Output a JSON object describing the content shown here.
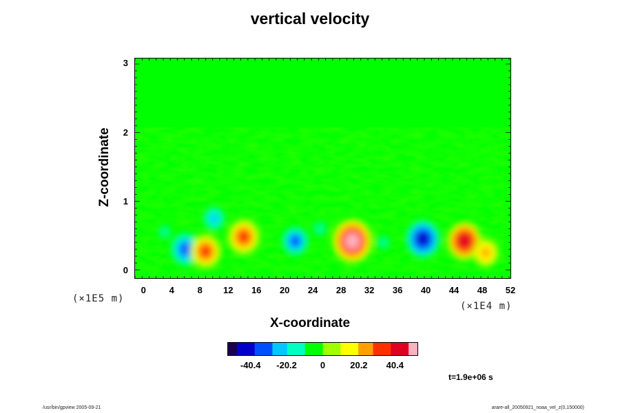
{
  "chart_data": {
    "type": "heatmap",
    "title": "vertical velocity",
    "xlabel": "X-coordinate",
    "ylabel": "Z-coordinate",
    "x_ticks": [
      "0",
      "4",
      "8",
      "12",
      "16",
      "20",
      "24",
      "28",
      "32",
      "36",
      "40",
      "44",
      "48",
      "52"
    ],
    "y_ticks": [
      "0",
      "1",
      "2",
      "3"
    ],
    "x_scale_label": "(×1E4 m)",
    "y_scale_label": "(×1E5 m)",
    "xlim": [
      -1.2,
      52
    ],
    "ylim": [
      -0.12,
      3.08
    ],
    "colorbar": {
      "ticks": [
        "-40.4",
        "-20.2",
        "0",
        "20.2",
        "40.4"
      ],
      "tick_values": [
        -40.4,
        -20.2,
        0,
        20.2,
        40.4
      ],
      "range": [
        -53,
        53
      ],
      "colormap": [
        "#1a0050",
        "#0000c8",
        "#0050ff",
        "#00c8ff",
        "#00ffc0",
        "#00ff00",
        "#a0ff00",
        "#ffff00",
        "#ffa000",
        "#ff3000",
        "#e00020",
        "#ffb0c0"
      ]
    },
    "cells": [
      {
        "x": 6,
        "z": 0.3,
        "v": -38
      },
      {
        "x": 8.8,
        "z": 0.27,
        "v": 36
      },
      {
        "x": 14.2,
        "z": 0.48,
        "v": 38
      },
      {
        "x": 21.5,
        "z": 0.42,
        "v": -30
      },
      {
        "x": 29.6,
        "z": 0.42,
        "v": 50
      },
      {
        "x": 34,
        "z": 0.4,
        "v": -10
      },
      {
        "x": 39.6,
        "z": 0.45,
        "v": -40
      },
      {
        "x": 45.5,
        "z": 0.42,
        "v": 40
      },
      {
        "x": 48.5,
        "z": 0.25,
        "v": 25
      },
      {
        "x": 10,
        "z": 0.75,
        "v": -20
      },
      {
        "x": 25,
        "z": 0.6,
        "v": -12
      },
      {
        "x": 3,
        "z": 0.55,
        "v": -10
      }
    ],
    "time_label": "t=1.9e+06 s",
    "footer_left": "/usr/bin/gpview 2005-09-21",
    "footer_right": "arare-all_20050921_noaa_vel_z(0,150000)"
  }
}
